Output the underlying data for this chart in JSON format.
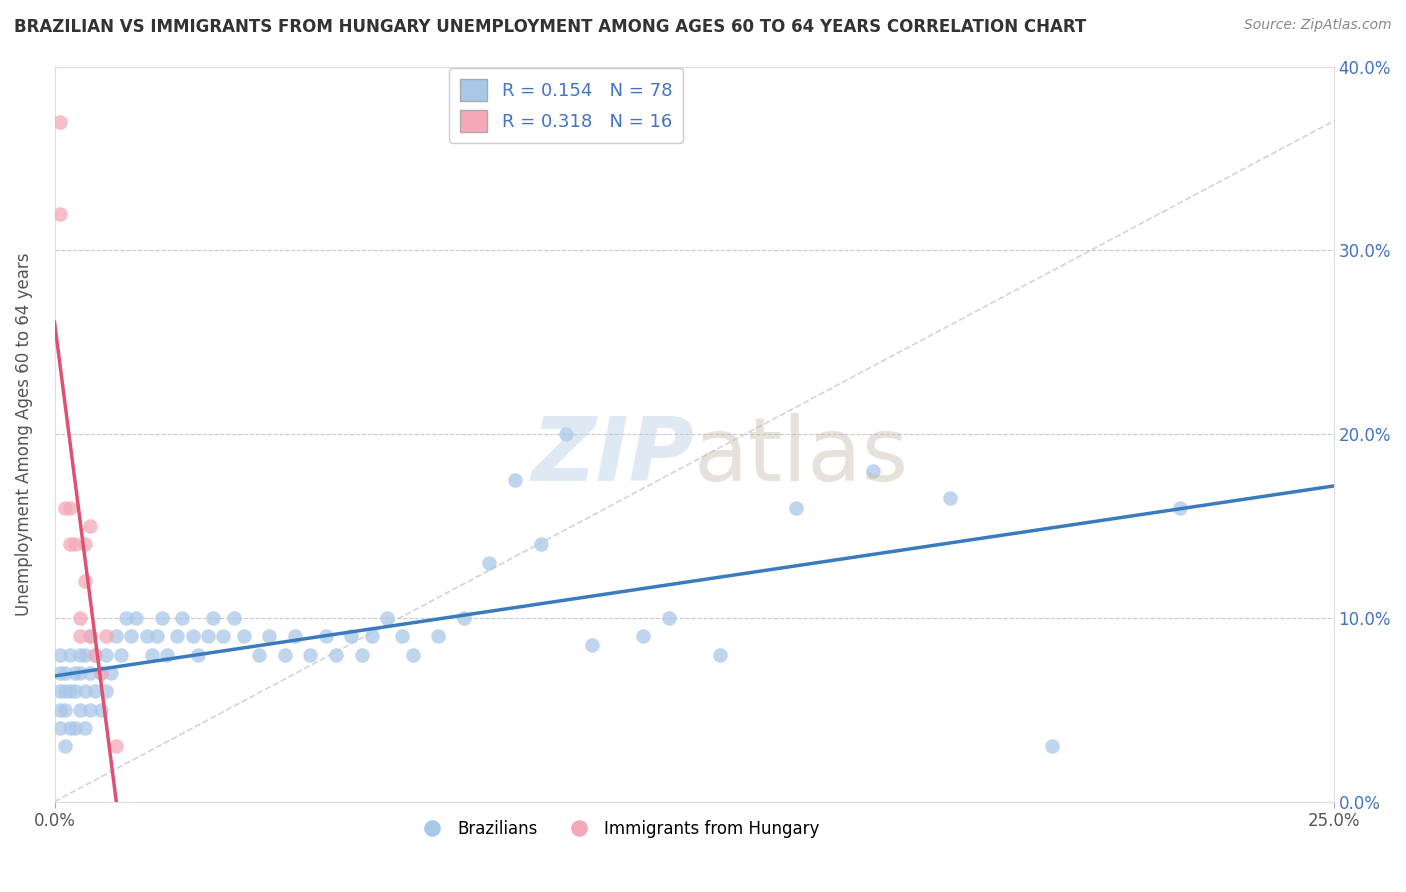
{
  "title": "BRAZILIAN VS IMMIGRANTS FROM HUNGARY UNEMPLOYMENT AMONG AGES 60 TO 64 YEARS CORRELATION CHART",
  "source": "Source: ZipAtlas.com",
  "ylabel": "Unemployment Among Ages 60 to 64 years",
  "xlim": [
    0.0,
    0.25
  ],
  "ylim": [
    0.0,
    0.4
  ],
  "xticks": [
    0.0,
    0.25
  ],
  "yticks": [
    0.0,
    0.1,
    0.2,
    0.3,
    0.4
  ],
  "xtick_labels": [
    "0.0%",
    "25.0%"
  ],
  "ytick_labels": [
    "0.0%",
    "10.0%",
    "20.0%",
    "30.0%",
    "40.0%"
  ],
  "brazil_R": 0.154,
  "brazil_N": 78,
  "hungary_R": 0.318,
  "hungary_N": 16,
  "brazil_color": "#a8c8e8",
  "hungary_color": "#f4a8b8",
  "brazil_line_color": "#3a7abf",
  "hungary_line_color": "#e05070",
  "diag_color": "#c8c8d0",
  "watermark": "ZIPatlas",
  "legend_label_brazil": "Brazilians",
  "legend_label_hungary": "Immigrants from Hungary",
  "background_color": "#ffffff",
  "grid_color": "#c8c8d8",
  "brazil_x": [
    0.001,
    0.001,
    0.001,
    0.001,
    0.001,
    0.002,
    0.002,
    0.002,
    0.002,
    0.003,
    0.003,
    0.003,
    0.004,
    0.004,
    0.004,
    0.005,
    0.005,
    0.005,
    0.006,
    0.006,
    0.006,
    0.007,
    0.007,
    0.007,
    0.008,
    0.008,
    0.009,
    0.009,
    0.01,
    0.01,
    0.011,
    0.012,
    0.013,
    0.014,
    0.015,
    0.016,
    0.018,
    0.019,
    0.02,
    0.021,
    0.022,
    0.024,
    0.025,
    0.027,
    0.028,
    0.03,
    0.031,
    0.033,
    0.035,
    0.037,
    0.04,
    0.042,
    0.045,
    0.047,
    0.05,
    0.053,
    0.055,
    0.058,
    0.06,
    0.062,
    0.065,
    0.068,
    0.07,
    0.075,
    0.08,
    0.085,
    0.09,
    0.095,
    0.1,
    0.105,
    0.115,
    0.12,
    0.13,
    0.145,
    0.16,
    0.175,
    0.195,
    0.22
  ],
  "brazil_y": [
    0.04,
    0.05,
    0.06,
    0.07,
    0.08,
    0.03,
    0.05,
    0.06,
    0.07,
    0.04,
    0.06,
    0.08,
    0.04,
    0.06,
    0.07,
    0.05,
    0.07,
    0.08,
    0.04,
    0.06,
    0.08,
    0.05,
    0.07,
    0.09,
    0.06,
    0.08,
    0.05,
    0.07,
    0.06,
    0.08,
    0.07,
    0.09,
    0.08,
    0.1,
    0.09,
    0.1,
    0.09,
    0.08,
    0.09,
    0.1,
    0.08,
    0.09,
    0.1,
    0.09,
    0.08,
    0.09,
    0.1,
    0.09,
    0.1,
    0.09,
    0.08,
    0.09,
    0.08,
    0.09,
    0.08,
    0.09,
    0.08,
    0.09,
    0.08,
    0.09,
    0.1,
    0.09,
    0.08,
    0.09,
    0.1,
    0.13,
    0.175,
    0.14,
    0.2,
    0.085,
    0.09,
    0.1,
    0.08,
    0.16,
    0.18,
    0.165,
    0.03,
    0.16
  ],
  "hungary_x": [
    0.001,
    0.001,
    0.002,
    0.003,
    0.003,
    0.004,
    0.005,
    0.005,
    0.006,
    0.006,
    0.007,
    0.007,
    0.008,
    0.009,
    0.01,
    0.012
  ],
  "hungary_y": [
    0.37,
    0.32,
    0.16,
    0.14,
    0.16,
    0.14,
    0.1,
    0.09,
    0.14,
    0.12,
    0.09,
    0.15,
    0.08,
    0.07,
    0.09,
    0.03
  ]
}
